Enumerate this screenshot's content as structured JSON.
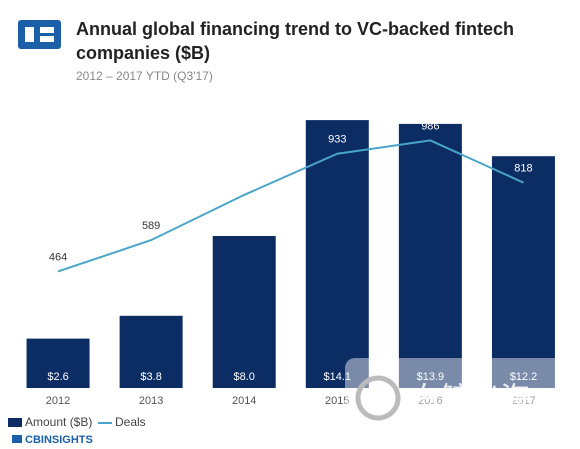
{
  "chart_data": {
    "type": "bar",
    "title": [
      "Annual global financing trend to VC-backed fintech",
      "companies ($B)"
    ],
    "subtitle": "2012 – 2017 YTD (Q3'17)",
    "categories": [
      "2012",
      "2013",
      "2014",
      "2015",
      "2016",
      "2017"
    ],
    "series": [
      {
        "name": "Amount ($B)",
        "type": "bar",
        "color": "#0c2d63",
        "values": [
          2.6,
          3.8,
          8.0,
          14.1,
          13.9,
          12.2
        ],
        "value_labels": [
          "$2.6",
          "$3.8",
          "$8.0",
          "$14.1",
          "$13.9",
          "$12.2"
        ]
      },
      {
        "name": "Deals",
        "type": "line",
        "axis": "y2",
        "color": "#4aa5c9",
        "values": [
          464,
          589,
          769,
          933,
          986,
          818
        ]
      }
    ],
    "ylim": [
      0,
      15
    ],
    "y2lim": [
      0,
      1135
    ],
    "source_logo": "CBINSIGHTS",
    "watermark": "白鲸出海"
  }
}
